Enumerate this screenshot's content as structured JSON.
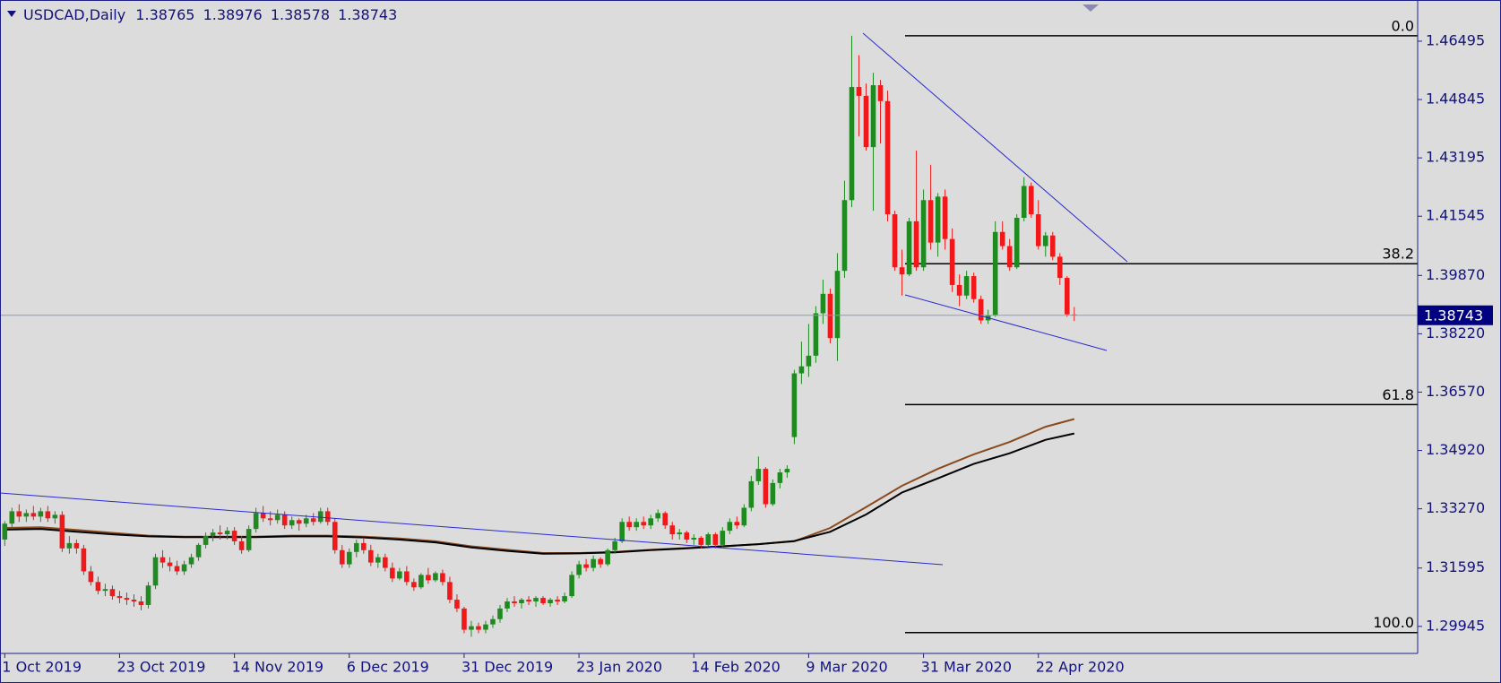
{
  "chart_data": {
    "type": "candlestick",
    "symbol": "USDCAD,Daily",
    "up_color": "#1f8a1f",
    "down_color": "#f01818",
    "categories": [
      "1 Oct 2019",
      null,
      null,
      null,
      null,
      null,
      null,
      null,
      null,
      null,
      null,
      null,
      null,
      null,
      null,
      null,
      "23 Oct 2019",
      null,
      null,
      null,
      null,
      null,
      null,
      null,
      null,
      null,
      null,
      null,
      null,
      null,
      null,
      null,
      "14 Nov 2019",
      null,
      null,
      null,
      null,
      null,
      null,
      null,
      null,
      null,
      null,
      null,
      null,
      null,
      null,
      null,
      "6 Dec 2019",
      null,
      null,
      null,
      null,
      null,
      null,
      null,
      null,
      null,
      null,
      null,
      null,
      null,
      null,
      null,
      "31 Dec 2019",
      null,
      null,
      null,
      null,
      null,
      null,
      null,
      null,
      null,
      null,
      null,
      null,
      null,
      null,
      null,
      "23 Jan 2020",
      null,
      null,
      null,
      null,
      null,
      null,
      null,
      null,
      null,
      null,
      null,
      null,
      null,
      null,
      null,
      "14 Feb 2020",
      null,
      null,
      null,
      null,
      null,
      null,
      null,
      null,
      null,
      null,
      null,
      null,
      null,
      null,
      null,
      "9 Mar 2020",
      null,
      null,
      null,
      null,
      null,
      null,
      null,
      null,
      null,
      null,
      null,
      null,
      null,
      null,
      null,
      "31 Mar 2020",
      null,
      null,
      null,
      null,
      null,
      null,
      null,
      null,
      null,
      null,
      null,
      null,
      null,
      null,
      null,
      "22 Apr 2020",
      null,
      null,
      null,
      null,
      null
    ],
    "ohlc": [
      [
        1.324,
        1.3292,
        1.3222,
        1.3285
      ],
      [
        1.3285,
        1.333,
        1.327,
        1.332
      ],
      [
        1.332,
        1.334,
        1.329,
        1.3305
      ],
      [
        1.3305,
        1.3325,
        1.329,
        1.3315
      ],
      [
        1.3315,
        1.3335,
        1.3295,
        1.3305
      ],
      [
        1.3305,
        1.333,
        1.329,
        1.332
      ],
      [
        1.332,
        1.3335,
        1.329,
        1.33
      ],
      [
        1.33,
        1.332,
        1.3285,
        1.331
      ],
      [
        1.331,
        1.332,
        1.3205,
        1.3215
      ],
      [
        1.3215,
        1.325,
        1.32,
        1.323
      ],
      [
        1.323,
        1.324,
        1.32,
        1.3215
      ],
      [
        1.3215,
        1.3225,
        1.314,
        1.315
      ],
      [
        1.315,
        1.3165,
        1.311,
        1.312
      ],
      [
        1.312,
        1.3135,
        1.3085,
        1.3095
      ],
      [
        1.3095,
        1.3115,
        1.308,
        1.31
      ],
      [
        1.31,
        1.311,
        1.307,
        1.308
      ],
      [
        1.308,
        1.3095,
        1.306,
        1.3075
      ],
      [
        1.3075,
        1.309,
        1.3055,
        1.307
      ],
      [
        1.307,
        1.3085,
        1.305,
        1.3065
      ],
      [
        1.3065,
        1.308,
        1.304,
        1.3055
      ],
      [
        1.3055,
        1.312,
        1.3045,
        1.311
      ],
      [
        1.311,
        1.32,
        1.31,
        1.319
      ],
      [
        1.319,
        1.321,
        1.316,
        1.3175
      ],
      [
        1.3175,
        1.319,
        1.315,
        1.3165
      ],
      [
        1.3165,
        1.318,
        1.314,
        1.315
      ],
      [
        1.315,
        1.318,
        1.314,
        1.317
      ],
      [
        1.317,
        1.32,
        1.316,
        1.319
      ],
      [
        1.319,
        1.323,
        1.318,
        1.3225
      ],
      [
        1.3225,
        1.326,
        1.3215,
        1.325
      ],
      [
        1.325,
        1.327,
        1.3235,
        1.326
      ],
      [
        1.326,
        1.328,
        1.324,
        1.3255
      ],
      [
        1.3255,
        1.3275,
        1.324,
        1.3265
      ],
      [
        1.3265,
        1.3275,
        1.3225,
        1.3235
      ],
      [
        1.3235,
        1.325,
        1.32,
        1.321
      ],
      [
        1.321,
        1.328,
        1.3205,
        1.327
      ],
      [
        1.327,
        1.333,
        1.326,
        1.3315
      ],
      [
        1.3315,
        1.3335,
        1.329,
        1.33
      ],
      [
        1.33,
        1.332,
        1.328,
        1.3295
      ],
      [
        1.3295,
        1.3325,
        1.3285,
        1.331
      ],
      [
        1.331,
        1.332,
        1.327,
        1.328
      ],
      [
        1.328,
        1.3305,
        1.327,
        1.3295
      ],
      [
        1.3295,
        1.33,
        1.3265,
        1.3285
      ],
      [
        1.3285,
        1.331,
        1.3275,
        1.33
      ],
      [
        1.33,
        1.3315,
        1.328,
        1.329
      ],
      [
        1.329,
        1.333,
        1.3285,
        1.332
      ],
      [
        1.332,
        1.333,
        1.328,
        1.329
      ],
      [
        1.329,
        1.33,
        1.32,
        1.321
      ],
      [
        1.321,
        1.3225,
        1.316,
        1.317
      ],
      [
        1.317,
        1.3215,
        1.316,
        1.3205
      ],
      [
        1.3205,
        1.324,
        1.319,
        1.323
      ],
      [
        1.323,
        1.3245,
        1.32,
        1.321
      ],
      [
        1.321,
        1.3225,
        1.3165,
        1.3175
      ],
      [
        1.3175,
        1.32,
        1.316,
        1.319
      ],
      [
        1.319,
        1.32,
        1.315,
        1.316
      ],
      [
        1.316,
        1.3175,
        1.312,
        1.313
      ],
      [
        1.313,
        1.316,
        1.3125,
        1.315
      ],
      [
        1.315,
        1.3165,
        1.311,
        1.312
      ],
      [
        1.312,
        1.313,
        1.3095,
        1.3105
      ],
      [
        1.3105,
        1.3145,
        1.31,
        1.314
      ],
      [
        1.314,
        1.316,
        1.3115,
        1.3125
      ],
      [
        1.3125,
        1.315,
        1.312,
        1.3145
      ],
      [
        1.3145,
        1.3155,
        1.311,
        1.312
      ],
      [
        1.312,
        1.3135,
        1.306,
        1.307
      ],
      [
        1.307,
        1.3085,
        1.3035,
        1.3045
      ],
      [
        1.3045,
        1.305,
        1.2975,
        1.2985
      ],
      [
        1.2985,
        1.301,
        1.2965,
        1.2995
      ],
      [
        1.2995,
        1.3005,
        1.2975,
        1.2985
      ],
      [
        1.2985,
        1.301,
        1.2975,
        1.3
      ],
      [
        1.3,
        1.3025,
        1.299,
        1.3015
      ],
      [
        1.3015,
        1.3055,
        1.3005,
        1.3045
      ],
      [
        1.3045,
        1.3075,
        1.3035,
        1.3065
      ],
      [
        1.3065,
        1.308,
        1.305,
        1.306
      ],
      [
        1.306,
        1.3075,
        1.3045,
        1.307
      ],
      [
        1.307,
        1.308,
        1.3055,
        1.3065
      ],
      [
        1.3065,
        1.308,
        1.305,
        1.3075
      ],
      [
        1.3075,
        1.308,
        1.3055,
        1.306
      ],
      [
        1.306,
        1.3075,
        1.305,
        1.307
      ],
      [
        1.307,
        1.308,
        1.3055,
        1.3065
      ],
      [
        1.3065,
        1.309,
        1.306,
        1.308
      ],
      [
        1.308,
        1.315,
        1.3075,
        1.314
      ],
      [
        1.314,
        1.318,
        1.313,
        1.317
      ],
      [
        1.317,
        1.3185,
        1.315,
        1.316
      ],
      [
        1.316,
        1.3195,
        1.315,
        1.3185
      ],
      [
        1.3185,
        1.319,
        1.316,
        1.317
      ],
      [
        1.317,
        1.3215,
        1.3165,
        1.321
      ],
      [
        1.321,
        1.3245,
        1.32,
        1.3235
      ],
      [
        1.3235,
        1.33,
        1.323,
        1.329
      ],
      [
        1.329,
        1.3305,
        1.3265,
        1.3275
      ],
      [
        1.3275,
        1.33,
        1.3265,
        1.329
      ],
      [
        1.329,
        1.3305,
        1.327,
        1.328
      ],
      [
        1.328,
        1.331,
        1.327,
        1.33
      ],
      [
        1.33,
        1.3325,
        1.329,
        1.3315
      ],
      [
        1.3315,
        1.332,
        1.327,
        1.328
      ],
      [
        1.328,
        1.329,
        1.324,
        1.3255
      ],
      [
        1.3255,
        1.327,
        1.324,
        1.326
      ],
      [
        1.326,
        1.3265,
        1.323,
        1.324
      ],
      [
        1.324,
        1.3255,
        1.3225,
        1.3245
      ],
      [
        1.3245,
        1.325,
        1.3215,
        1.3225
      ],
      [
        1.3225,
        1.326,
        1.322,
        1.3255
      ],
      [
        1.3255,
        1.326,
        1.3215,
        1.3225
      ],
      [
        1.3225,
        1.3275,
        1.322,
        1.3265
      ],
      [
        1.3265,
        1.33,
        1.3255,
        1.329
      ],
      [
        1.329,
        1.3305,
        1.327,
        1.328
      ],
      [
        1.328,
        1.334,
        1.3275,
        1.333
      ],
      [
        1.333,
        1.342,
        1.332,
        1.3405
      ],
      [
        1.3405,
        1.3475,
        1.3395,
        1.344
      ],
      [
        1.344,
        1.3445,
        1.333,
        1.334
      ],
      [
        1.334,
        1.341,
        1.3335,
        1.34
      ],
      [
        1.34,
        1.344,
        1.3385,
        1.343
      ],
      [
        1.343,
        1.345,
        1.3415,
        1.344
      ],
      [
        1.353,
        1.372,
        1.351,
        1.371
      ],
      [
        1.371,
        1.38,
        1.368,
        1.373
      ],
      [
        1.373,
        1.385,
        1.37,
        1.376
      ],
      [
        1.376,
        1.39,
        1.374,
        1.388
      ],
      [
        1.388,
        1.3975,
        1.385,
        1.3935
      ],
      [
        1.3935,
        1.395,
        1.3795,
        1.381
      ],
      [
        1.381,
        1.405,
        1.3745,
        1.4
      ],
      [
        1.4,
        1.4255,
        1.398,
        1.42
      ],
      [
        1.42,
        1.4665,
        1.418,
        1.452
      ],
      [
        1.452,
        1.461,
        1.438,
        1.4495
      ],
      [
        1.4495,
        1.453,
        1.434,
        1.435
      ],
      [
        1.435,
        1.456,
        1.417,
        1.4525
      ],
      [
        1.4525,
        1.454,
        1.436,
        1.448
      ],
      [
        1.448,
        1.451,
        1.414,
        1.416
      ],
      [
        1.416,
        1.417,
        1.4,
        1.401
      ],
      [
        1.401,
        1.406,
        1.393,
        1.399
      ],
      [
        1.399,
        1.415,
        1.3985,
        1.414
      ],
      [
        1.414,
        1.434,
        1.4,
        1.401
      ],
      [
        1.401,
        1.423,
        1.4,
        1.42
      ],
      [
        1.42,
        1.43,
        1.406,
        1.408
      ],
      [
        1.408,
        1.422,
        1.404,
        1.421
      ],
      [
        1.421,
        1.423,
        1.406,
        1.409
      ],
      [
        1.409,
        1.412,
        1.394,
        1.396
      ],
      [
        1.396,
        1.399,
        1.39,
        1.393
      ],
      [
        1.393,
        1.4,
        1.392,
        1.3985
      ],
      [
        1.3985,
        1.3995,
        1.391,
        1.392
      ],
      [
        1.392,
        1.393,
        1.385,
        1.386
      ],
      [
        1.386,
        1.389,
        1.385,
        1.3875
      ],
      [
        1.3875,
        1.414,
        1.387,
        1.411
      ],
      [
        1.411,
        1.414,
        1.406,
        1.407
      ],
      [
        1.407,
        1.409,
        1.4,
        1.401
      ],
      [
        1.401,
        1.416,
        1.4005,
        1.415
      ],
      [
        1.415,
        1.4265,
        1.414,
        1.424
      ],
      [
        1.424,
        1.425,
        1.415,
        1.416
      ],
      [
        1.416,
        1.42,
        1.406,
        1.407
      ],
      [
        1.407,
        1.411,
        1.404,
        1.41
      ],
      [
        1.41,
        1.411,
        1.403,
        1.404
      ],
      [
        1.404,
        1.405,
        1.396,
        1.398
      ],
      [
        1.398,
        1.3985,
        1.387,
        1.3877
      ],
      [
        1.38765,
        1.38976,
        1.38578,
        1.38743
      ]
    ],
    "moving_averages": [
      {
        "color": "#8b4a1c",
        "x": [
          0,
          5,
          10,
          15,
          20,
          25,
          30,
          35,
          40,
          45,
          50,
          55,
          60,
          65,
          70,
          75,
          80,
          85,
          90,
          95,
          100,
          105,
          110,
          115,
          120,
          125,
          130,
          135,
          140,
          145,
          149
        ],
        "values": [
          1.3273,
          1.3275,
          1.3267,
          1.3259,
          1.3251,
          1.3248,
          1.3248,
          1.3248,
          1.3251,
          1.3251,
          1.3248,
          1.3243,
          1.3235,
          1.3221,
          1.3211,
          1.3202,
          1.3202,
          1.3205,
          1.3211,
          1.3216,
          1.3221,
          1.3227,
          1.3235,
          1.3273,
          1.3332,
          1.3392,
          1.344,
          1.3481,
          1.3516,
          1.3559,
          1.3581
        ]
      },
      {
        "color": "#000000",
        "x": [
          0,
          5,
          10,
          15,
          20,
          25,
          30,
          35,
          40,
          45,
          50,
          55,
          60,
          65,
          70,
          75,
          80,
          85,
          90,
          95,
          100,
          105,
          110,
          115,
          120,
          125,
          130,
          135,
          140,
          145,
          149
        ],
        "values": [
          1.3268,
          1.327,
          1.3262,
          1.3255,
          1.3249,
          1.3247,
          1.3247,
          1.3247,
          1.3249,
          1.3249,
          1.3246,
          1.324,
          1.3232,
          1.3218,
          1.3208,
          1.32,
          1.3201,
          1.3204,
          1.321,
          1.3215,
          1.3221,
          1.3227,
          1.3236,
          1.3262,
          1.3311,
          1.3373,
          1.3413,
          1.3454,
          1.3484,
          1.3522,
          1.354
        ]
      }
    ],
    "fib": {
      "high": 1.4665,
      "low": 1.2977,
      "levels": [
        {
          "value": 0,
          "label": "0.0"
        },
        38.2,
        61.8,
        {
          "value": 100,
          "label": "100.0"
        }
      ]
    },
    "ylim": [
      1.2918,
      1.4766
    ],
    "yticks": [
      1.46495,
      1.44845,
      1.43195,
      1.41545,
      {
        "value": 1.3987,
        "label": "1.39870"
      },
      {
        "value": 1.3822,
        "label": "1.38220"
      },
      {
        "value": 1.3657,
        "label": "1.36570"
      },
      {
        "value": 1.3492,
        "label": "1.34920"
      },
      {
        "value": 1.3327,
        "label": "1.33270"
      },
      1.31595,
      1.29945
    ]
  }
}
